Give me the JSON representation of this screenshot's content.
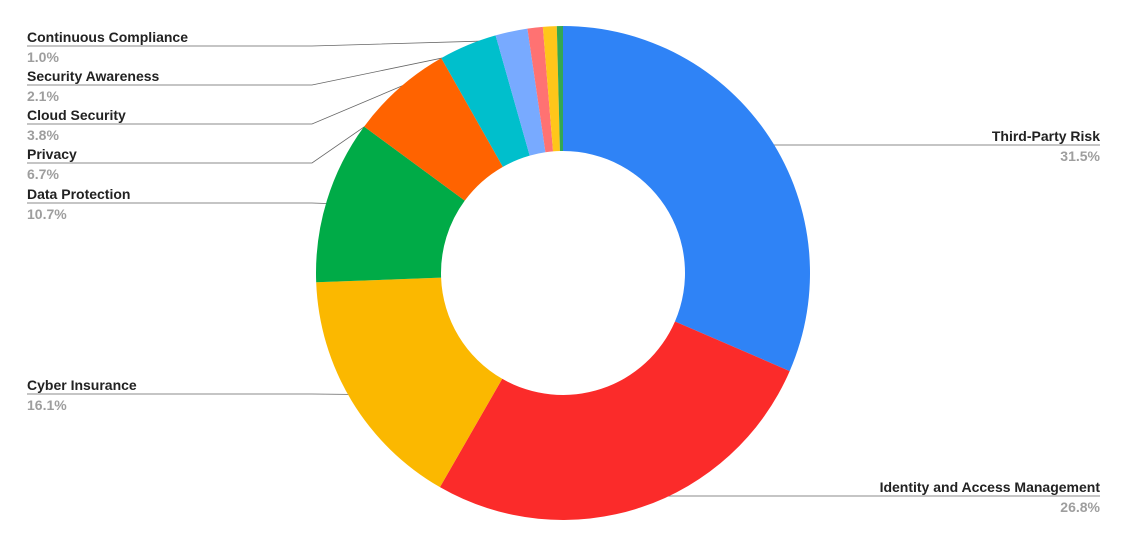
{
  "chart_data": {
    "type": "donut",
    "categories": [
      "Third-Party Risk",
      "Identity and Access Management",
      "Cyber Insurance",
      "Data Protection",
      "Privacy",
      "Cloud Security",
      "Security Awareness",
      "Continuous Compliance",
      null,
      null
    ],
    "values": [
      31.5,
      26.8,
      16.1,
      10.7,
      6.7,
      3.8,
      2.1,
      1.0,
      0.9,
      0.4
    ],
    "value_labels": [
      "31.5%",
      "26.8%",
      "16.1%",
      "10.7%",
      "6.7%",
      "3.8%",
      "2.1%",
      "1.0%",
      null,
      null
    ],
    "colors": [
      "#2f83f6",
      "#fb2b2a",
      "#fbb800",
      "#00ab47",
      "#ff6300",
      "#00bfcc",
      "#78aaff",
      "#ff7272",
      "#ffc61a",
      "#34a853"
    ]
  }
}
